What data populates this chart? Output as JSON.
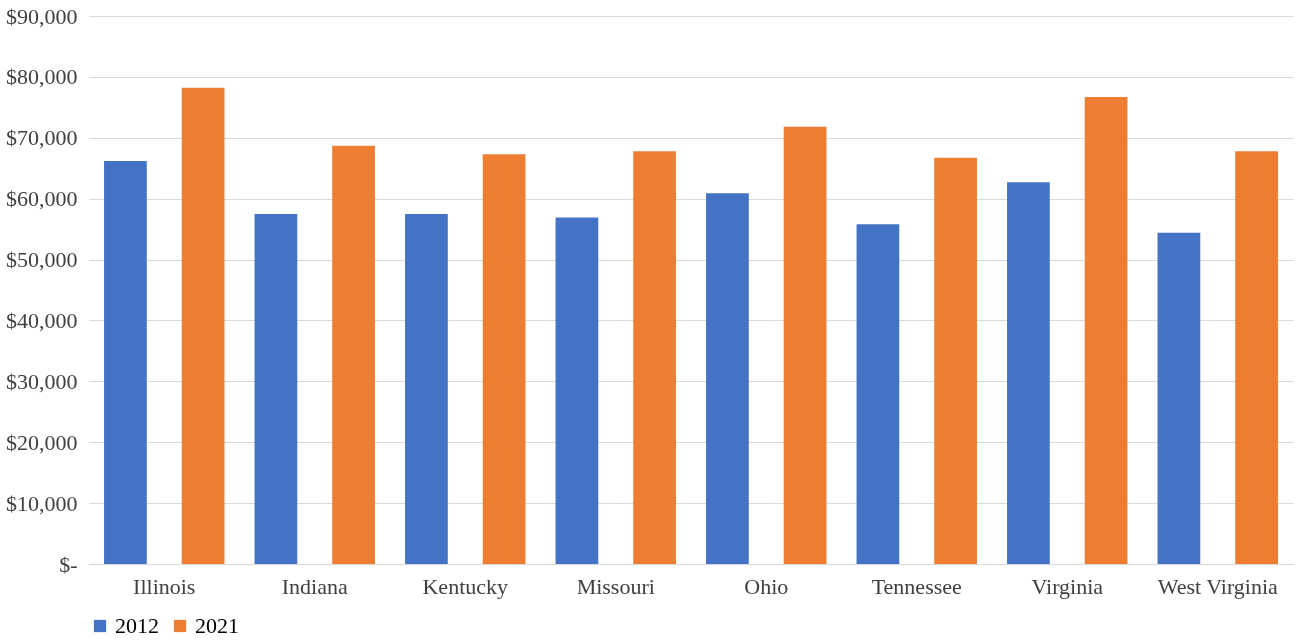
{
  "chart_data": {
    "type": "bar",
    "categories": [
      "Illinois",
      "Indiana",
      "Kentucky",
      "Missouri",
      "Ohio",
      "Tennessee",
      "Virginia",
      "West Virginia"
    ],
    "series": [
      {
        "name": "2012",
        "color": "#4472c4",
        "values": [
          66200,
          57500,
          57500,
          56900,
          60900,
          55800,
          62700,
          54400
        ]
      },
      {
        "name": "2021",
        "color": "#ed7d31",
        "values": [
          78200,
          68700,
          67300,
          67800,
          71800,
          66700,
          76700,
          67800
        ]
      }
    ],
    "ylim": [
      0,
      90000
    ],
    "yticks": [
      {
        "value": 0,
        "label": "$-"
      },
      {
        "value": 10000,
        "label": "$10,000"
      },
      {
        "value": 20000,
        "label": "$20,000"
      },
      {
        "value": 30000,
        "label": "$30,000"
      },
      {
        "value": 40000,
        "label": "$40,000"
      },
      {
        "value": 50000,
        "label": "$50,000"
      },
      {
        "value": 60000,
        "label": "$60,000"
      },
      {
        "value": 70000,
        "label": "$70,000"
      },
      {
        "value": 80000,
        "label": "$80,000"
      },
      {
        "value": 90000,
        "label": "$90,000"
      }
    ],
    "grid": "y",
    "legend": "bottom"
  }
}
